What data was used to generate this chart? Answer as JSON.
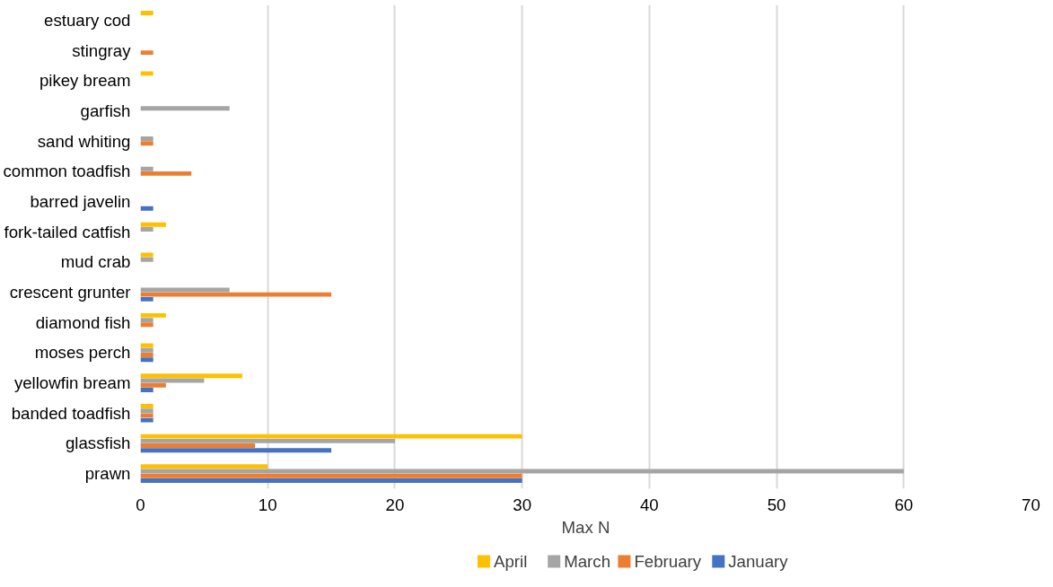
{
  "chart_data": {
    "type": "bar",
    "orientation": "horizontal",
    "xlabel": "Max N",
    "categories": [
      "estuary cod",
      "stingray",
      "pikey bream",
      "garfish",
      "sand whiting",
      "common toadfish",
      "barred javelin",
      "fork-tailed catfish",
      "mud crab",
      "crescent grunter",
      "diamond fish",
      "moses perch",
      "yellowfin bream",
      "banded toadfish",
      "glassfish",
      "prawn"
    ],
    "series": [
      {
        "name": "April",
        "color": "#ffc000",
        "values": [
          1,
          null,
          1,
          null,
          null,
          null,
          null,
          2,
          1,
          null,
          2,
          1,
          8,
          1,
          30,
          10
        ]
      },
      {
        "name": "March",
        "color": "#a5a5a5",
        "values": [
          null,
          null,
          null,
          7,
          1,
          1,
          null,
          1,
          1,
          7,
          1,
          1,
          5,
          1,
          20,
          60
        ]
      },
      {
        "name": "February",
        "color": "#ed7d31",
        "values": [
          null,
          1,
          null,
          null,
          1,
          4,
          null,
          null,
          null,
          15,
          1,
          1,
          2,
          1,
          9,
          30
        ]
      },
      {
        "name": "January",
        "color": "#4472c4",
        "values": [
          null,
          null,
          null,
          null,
          null,
          null,
          1,
          null,
          null,
          1,
          null,
          1,
          1,
          1,
          15,
          30
        ]
      }
    ],
    "xlim": [
      0,
      70
    ],
    "xticks": [
      0,
      10,
      20,
      30,
      40,
      50,
      60,
      70
    ],
    "grid": "x",
    "legend": "bottom"
  }
}
